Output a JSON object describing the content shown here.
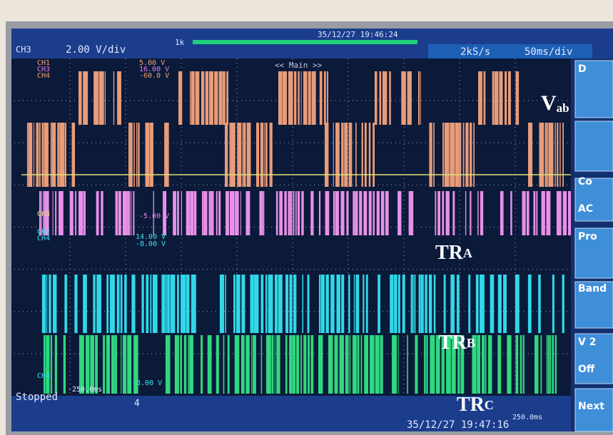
{
  "top_bar": {
    "channel": "CH3",
    "scale": "2.00 V/div",
    "memory": "1k",
    "timestamp": "35/12/27 19:46:24",
    "sample_rate": "2kS/s",
    "timebase": "50ms/div"
  },
  "channel_readouts": [
    {
      "channel": "CH1",
      "value": "5.00 V"
    },
    {
      "channel": "CH3",
      "value": "16.00 V"
    },
    {
      "channel": "CH4",
      "value": "-60.0 V"
    }
  ],
  "zoom_label": "<< Main >>",
  "lower_readouts": [
    {
      "channel": "CH3",
      "value": "-5.00 V"
    },
    {
      "channel": "CH2",
      "value": "14.00 V"
    },
    {
      "channel": "CH4",
      "value": "-8.00 V"
    }
  ],
  "bottom_readout": {
    "channel": "CH4",
    "value": "-8.00 V"
  },
  "trace_labels": [
    {
      "main": "V",
      "sub": "ab"
    },
    {
      "main": "TR",
      "sub": "A"
    },
    {
      "main": "TR",
      "sub": "B"
    },
    {
      "main": "TR",
      "sub": "C"
    }
  ],
  "status": {
    "state": "Stopped",
    "time_start": "-250.0ms",
    "channel": "4",
    "time_end": "250.0ms",
    "timestamp": "35/12/27 19:47:16"
  },
  "side_menu": [
    "D",
    "Co",
    "AC",
    "Pro",
    "Band",
    "V 2",
    "Off",
    "Next"
  ]
}
